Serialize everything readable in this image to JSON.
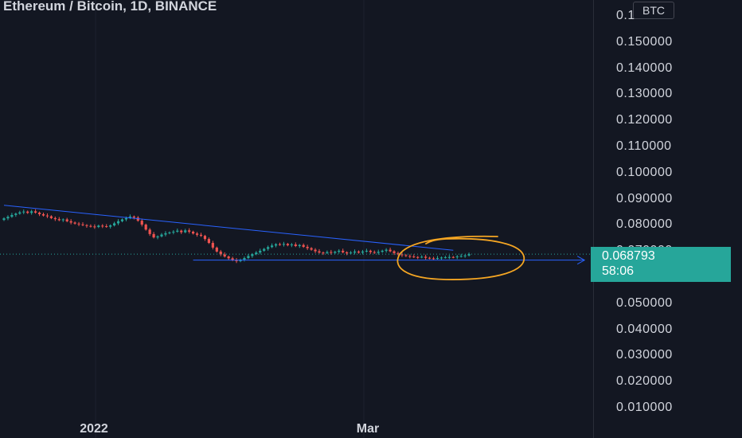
{
  "header": {
    "title": "Ethereum / Bitcoin, 1D, BINANCE",
    "currency": "BTC"
  },
  "colors": {
    "background": "#131722",
    "up": "#26a69a",
    "down": "#ef5350",
    "trendline": "#2962ff",
    "annotation": "#f5a623",
    "grid": "#1e222d"
  },
  "price_badge": {
    "price": "0.068793",
    "countdown": "58:06"
  },
  "chart_data": {
    "type": "candlestick",
    "title": "Ethereum / Bitcoin, 1D, BINANCE",
    "ylabel": "BTC",
    "ylim": [
      0.005,
      0.163
    ],
    "y_ticks": [
      "0.160000",
      "0.150000",
      "0.140000",
      "0.130000",
      "0.120000",
      "0.110000",
      "0.100000",
      "0.090000",
      "0.080000",
      "0.070000",
      "0.060000",
      "0.050000",
      "0.040000",
      "0.030000",
      "0.020000",
      "0.010000"
    ],
    "x_ticks": [
      "2022",
      "Mar"
    ],
    "last_price": 0.068793,
    "approx_closes": [
      0.0825,
      0.0831,
      0.0838,
      0.0843,
      0.0848,
      0.0851,
      0.0846,
      0.0852,
      0.0847,
      0.0841,
      0.0836,
      0.0833,
      0.0826,
      0.0822,
      0.0818,
      0.0821,
      0.0814,
      0.0809,
      0.0805,
      0.0802,
      0.0799,
      0.0796,
      0.0794,
      0.0792,
      0.0797,
      0.0795,
      0.0793,
      0.0798,
      0.0806,
      0.0814,
      0.0821,
      0.0826,
      0.0832,
      0.0828,
      0.0816,
      0.0801,
      0.0782,
      0.0765,
      0.0752,
      0.0756,
      0.0763,
      0.0768,
      0.0771,
      0.0774,
      0.0778,
      0.0772,
      0.0779,
      0.0774,
      0.0767,
      0.0762,
      0.0758,
      0.0746,
      0.0731,
      0.0713,
      0.0698,
      0.0687,
      0.0679,
      0.0672,
      0.0665,
      0.0661,
      0.0667,
      0.0673,
      0.0681,
      0.0688,
      0.0694,
      0.0701,
      0.0708,
      0.0715,
      0.0721,
      0.0726,
      0.0724,
      0.0727,
      0.0722,
      0.0725,
      0.0719,
      0.0723,
      0.0716,
      0.0711,
      0.0705,
      0.0699,
      0.0694,
      0.0692,
      0.0696,
      0.0693,
      0.0697,
      0.0701,
      0.0695,
      0.0691,
      0.0694,
      0.0698,
      0.0694,
      0.0698,
      0.0701,
      0.0696,
      0.0693,
      0.0697,
      0.0701,
      0.0705,
      0.0699,
      0.0692,
      0.0687,
      0.0684,
      0.0681,
      0.0679,
      0.0677,
      0.0676,
      0.0678,
      0.0674,
      0.0672,
      0.0671,
      0.0673,
      0.0675,
      0.0676,
      0.0677,
      0.0676,
      0.0679,
      0.0681,
      0.0683,
      0.0688
    ],
    "trendline_points": [
      [
        0,
        0.0875
      ],
      [
        114,
        0.0703
      ]
    ],
    "support_line": [
      [
        48,
        0.0665
      ],
      [
        117,
        0.0665
      ]
    ],
    "grid": true
  }
}
